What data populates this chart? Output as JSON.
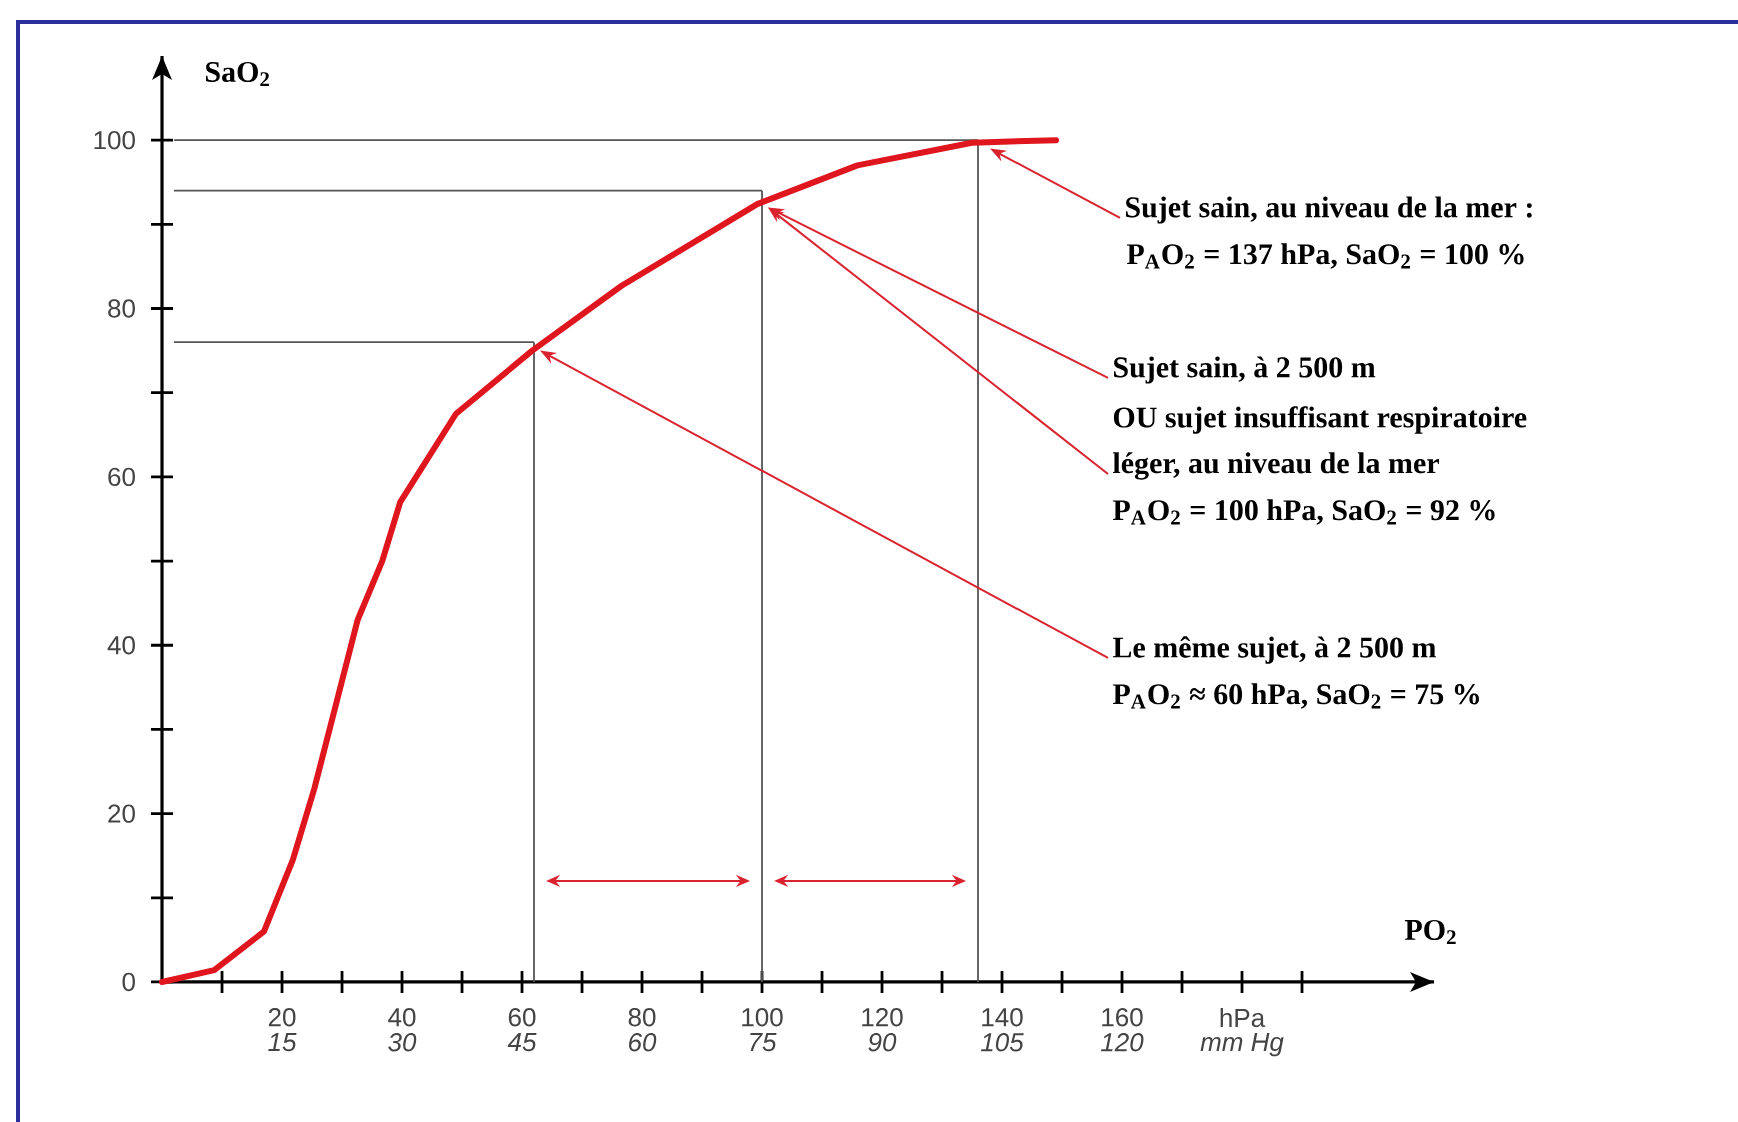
{
  "chart_data": {
    "type": "line",
    "xlabel": "PO$_{2}$",
    "ylabel": "SaO$_{2}$",
    "x": [
      0,
      8.7,
      17,
      21.8,
      25.4,
      29,
      32.6,
      36.7,
      39.7,
      49,
      61.7,
      76.6,
      99.2,
      115.9,
      135,
      149
    ],
    "series": [
      {
        "color": "#e0161e",
        "values": [
          0,
          1.4,
          6,
          14.5,
          23,
          33,
          43,
          50,
          57,
          67.5,
          75,
          82.7,
          92.4,
          97,
          99.7,
          100
        ]
      }
    ],
    "xlim": [
      0,
      212
    ],
    "ylim": [
      0,
      110
    ],
    "xticks": [
      {
        "value": 10,
        "label": null
      },
      20,
      {
        "value": 30,
        "label": null
      },
      40,
      {
        "value": 50,
        "label": null
      },
      60,
      {
        "value": 70,
        "label": null
      },
      80,
      {
        "value": 90,
        "label": null
      },
      100,
      {
        "value": 110,
        "label": null
      },
      120,
      {
        "value": 130,
        "label": null
      },
      140,
      {
        "value": 150,
        "label": null
      },
      160,
      {
        "value": 170,
        "label": null
      },
      {
        "value": 180,
        "label": "hPa"
      },
      {
        "value": 190,
        "label": null
      }
    ],
    "x2lim": [
      0,
      159
    ],
    "x2ticks": [
      15,
      30,
      45,
      60,
      75,
      90,
      105,
      120,
      {
        "value": 135,
        "label": "mm Hg"
      }
    ],
    "yticks": [
      0,
      {
        "value": 10,
        "label": null
      },
      20,
      {
        "value": 30,
        "label": null
      },
      40,
      {
        "value": 50,
        "label": null
      },
      60,
      {
        "value": 70,
        "label": null
      },
      80,
      {
        "value": 90,
        "label": null
      },
      100
    ],
    "ref_lines": [
      {
        "axis": "x",
        "value": 62,
        "color": "#555555"
      },
      {
        "axis": "x",
        "value": 100,
        "color": "#555555"
      },
      {
        "axis": "x",
        "value": 136,
        "color": "#555555"
      },
      {
        "axis": "y",
        "value": 76,
        "color": "#555555"
      },
      {
        "axis": "y",
        "value": 94,
        "color": "#555555"
      },
      {
        "axis": "y",
        "value": 100,
        "color": "#555555"
      }
    ],
    "annotations": [
      {
        "text": "Sujet sain, au niveau de la mer :",
        "x": 138,
        "y": 99
      },
      "P$_{A}$O$_{2}$ = 137 hPa, SaO$_{2}$ = 100 %",
      {
        "text": "Sujet sain, à 2 500 m",
        "x": 101,
        "y": 92
      },
      "OU sujet insuffisant respiratoire",
      {
        "text": "léger, au niveau de la mer",
        "x": 101,
        "y": 92
      },
      "P$_{A}$O$_{2}$ = 100 hPa, SaO$_{2}$ = 92 %",
      {
        "text": "Le même sujet, à 2 500 m",
        "x": 63,
        "y": 75
      },
      "P$_{A}$O$_{2}$ ≈ 60 hPa, SaO$_{2}$ = 75 %"
    ],
    "grid": false,
    "marker": "none",
    "line_style": "solid"
  }
}
